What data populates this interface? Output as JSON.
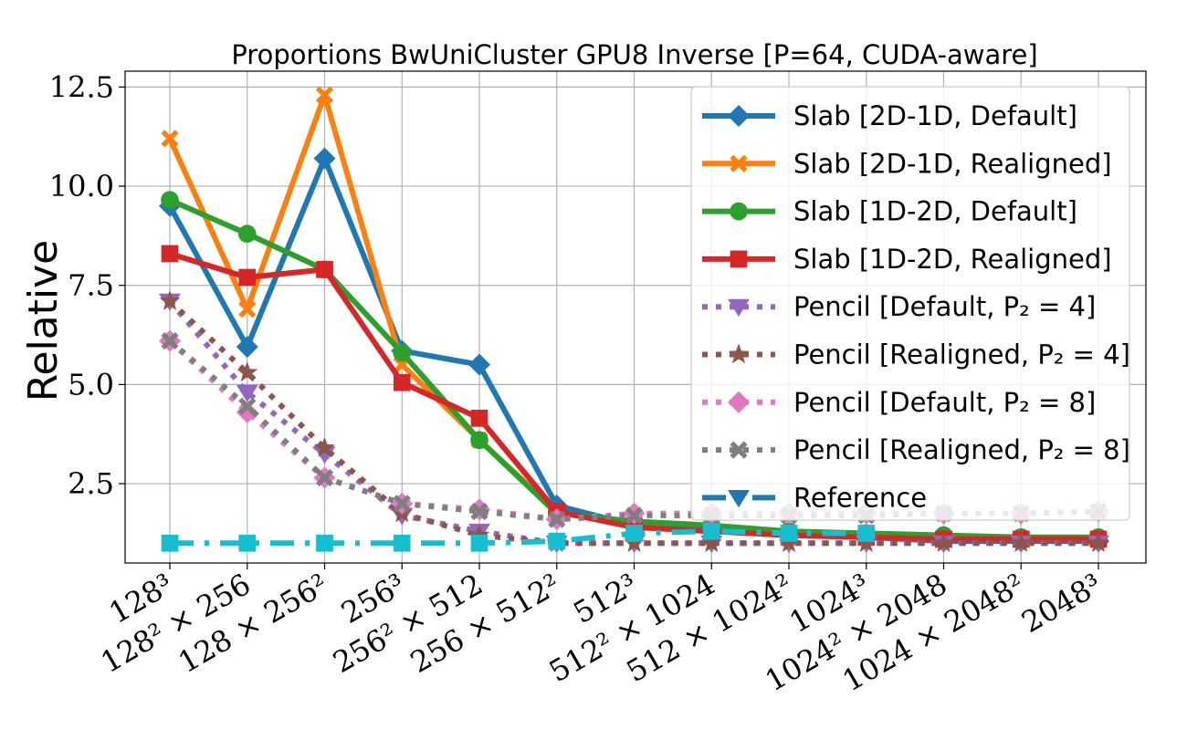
{
  "chart_data": {
    "type": "line",
    "title": "Proportions BwUniCluster GPU8 Inverse [P=64, CUDA-aware]",
    "xlabel": "",
    "ylabel": "Relative",
    "ylim": [
      0.5,
      12.9
    ],
    "y_ticks": [
      2.5,
      5.0,
      7.5,
      10.0,
      12.5
    ],
    "y_tick_labels": [
      "2.5",
      "5.0",
      "7.5",
      "10.0",
      "12.5"
    ],
    "grid": true,
    "legend_position": "top-right",
    "categories": [
      "128³",
      "128² × 256",
      "128 × 256²",
      "256³",
      "256² × 512",
      "256 × 512²",
      "512³",
      "512² × 1024",
      "512 × 1024²",
      "1024³",
      "1024² × 2048",
      "1024 × 2048²",
      "2048³"
    ],
    "series": [
      {
        "name": "Slab [2D-1D, Default]",
        "color": "#1f77b4",
        "marker": "diamond",
        "dash": "solid",
        "values": [
          9.5,
          5.95,
          10.7,
          5.85,
          5.5,
          1.95,
          1.45,
          1.35,
          1.2,
          1.15,
          1.05,
          1.05,
          1.05
        ]
      },
      {
        "name": "Slab [2D-1D, Realigned]",
        "color": "#ff7f0e",
        "marker": "x",
        "dash": "solid",
        "values": [
          11.2,
          6.9,
          12.3,
          5.5,
          3.6,
          1.8,
          1.4,
          1.3,
          1.2,
          1.15,
          1.1,
          1.1,
          1.1
        ]
      },
      {
        "name": "Slab [1D-2D, Default]",
        "color": "#2ca02c",
        "marker": "circle",
        "dash": "solid",
        "values": [
          9.65,
          8.8,
          7.9,
          5.8,
          3.6,
          1.75,
          1.55,
          1.45,
          1.3,
          1.25,
          1.2,
          1.15,
          1.15
        ]
      },
      {
        "name": "Slab [1D-2D, Realigned]",
        "color": "#d62728",
        "marker": "square",
        "dash": "solid",
        "values": [
          8.3,
          7.7,
          7.9,
          5.05,
          4.15,
          1.8,
          1.4,
          1.3,
          1.2,
          1.15,
          1.1,
          1.1,
          1.1
        ]
      },
      {
        "name": "Pencil [Default, P₂ = 4]",
        "color": "#9467bd",
        "marker": "triangle-down",
        "dash": "dotted",
        "values": [
          7.1,
          4.8,
          3.25,
          1.7,
          1.3,
          1.0,
          1.0,
          1.0,
          1.0,
          1.0,
          1.0,
          1.0,
          1.0
        ]
      },
      {
        "name": "Pencil [Realigned, P₂ = 4]",
        "color": "#8c564b",
        "marker": "star",
        "dash": "dotted",
        "values": [
          7.1,
          5.3,
          3.4,
          1.75,
          1.2,
          1.0,
          1.0,
          1.0,
          1.0,
          1.0,
          1.0,
          1.0,
          1.0
        ]
      },
      {
        "name": "Pencil [Default, P₂ = 8]",
        "color": "#e377c2",
        "marker": "diamond",
        "dash": "dotted",
        "values": [
          6.1,
          4.3,
          2.65,
          2.0,
          1.85,
          1.6,
          1.75,
          1.75,
          1.75,
          1.75,
          1.75,
          1.75,
          1.8
        ]
      },
      {
        "name": "Pencil [Realigned, P₂ = 8]",
        "color": "#7f7f7f",
        "marker": "x",
        "dash": "dotted",
        "values": [
          6.1,
          4.45,
          2.65,
          2.0,
          1.8,
          1.6,
          1.7,
          1.7,
          1.7,
          1.7,
          1.75,
          1.75,
          1.8
        ]
      },
      {
        "name": "Reference",
        "color": "#17becf",
        "marker": "square",
        "dash": "dashdot",
        "legend_color": "#1f77b4",
        "legend_marker": "triangle-down",
        "values": [
          1.0,
          1.0,
          1.0,
          1.0,
          1.0,
          1.05,
          1.25,
          1.3,
          1.25,
          1.25,
          null,
          null,
          null
        ]
      }
    ]
  }
}
